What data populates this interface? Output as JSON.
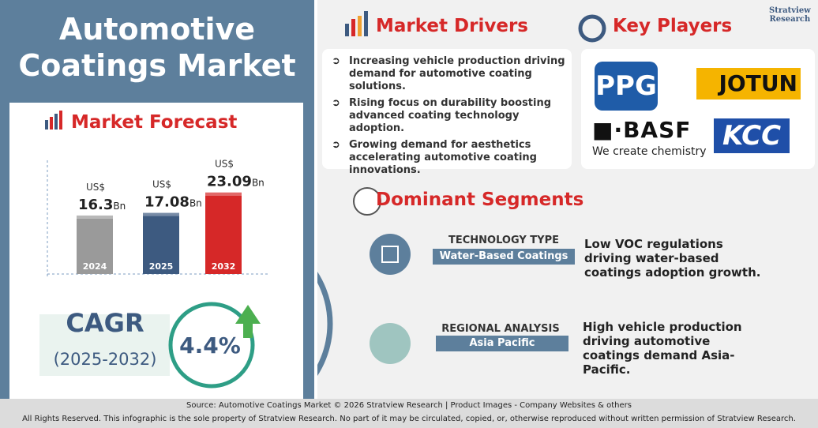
{
  "header": {
    "title": "Automotive Coatings Market",
    "brand": "Stratview",
    "brand_sub": "Research"
  },
  "forecast": {
    "title": "Market Forecast",
    "currency": "US$",
    "unit": "Bn",
    "categories": [
      "2024",
      "2025",
      "2032"
    ],
    "values": [
      16.3,
      17.08,
      23.09
    ],
    "colors": [
      "#9a9a9a",
      "#3d5a80",
      "#d62828"
    ]
  },
  "cagr": {
    "label": "CAGR",
    "period": "(2025-2032)",
    "value": "4.4%"
  },
  "drivers": {
    "title": "Market Drivers",
    "items": [
      "Increasing vehicle production driving demand for automotive coating solutions.",
      "Rising focus on durability boosting advanced coating technology adoption.",
      "Growing demand for aesthetics accelerating automotive coating innovations."
    ]
  },
  "players": {
    "title": "Key Players",
    "logos": [
      "PPG",
      "JOTUN",
      "BASF",
      "We create chemistry",
      "KCC"
    ]
  },
  "segments": {
    "title": "Dominant Segments",
    "items": [
      {
        "heading": "TECHNOLOGY TYPE",
        "label": "Water-Based Coatings",
        "description": "Low VOC regulations driving water-based coatings adoption growth."
      },
      {
        "heading": "REGIONAL ANALYSIS",
        "label": "Asia Pacific",
        "description": "High vehicle production driving automotive coatings demand Asia-Pacific."
      }
    ]
  },
  "footer": {
    "source": "Source:  Automotive Coatings Market © 2026 Stratview Research | Product Images  - Company Websites & others",
    "rights": "All Rights Reserved. This infographic is the sole property of Stratview Research. No part of it may be circulated, copied, or, otherwise reproduced without written permission of Stratview Research."
  }
}
